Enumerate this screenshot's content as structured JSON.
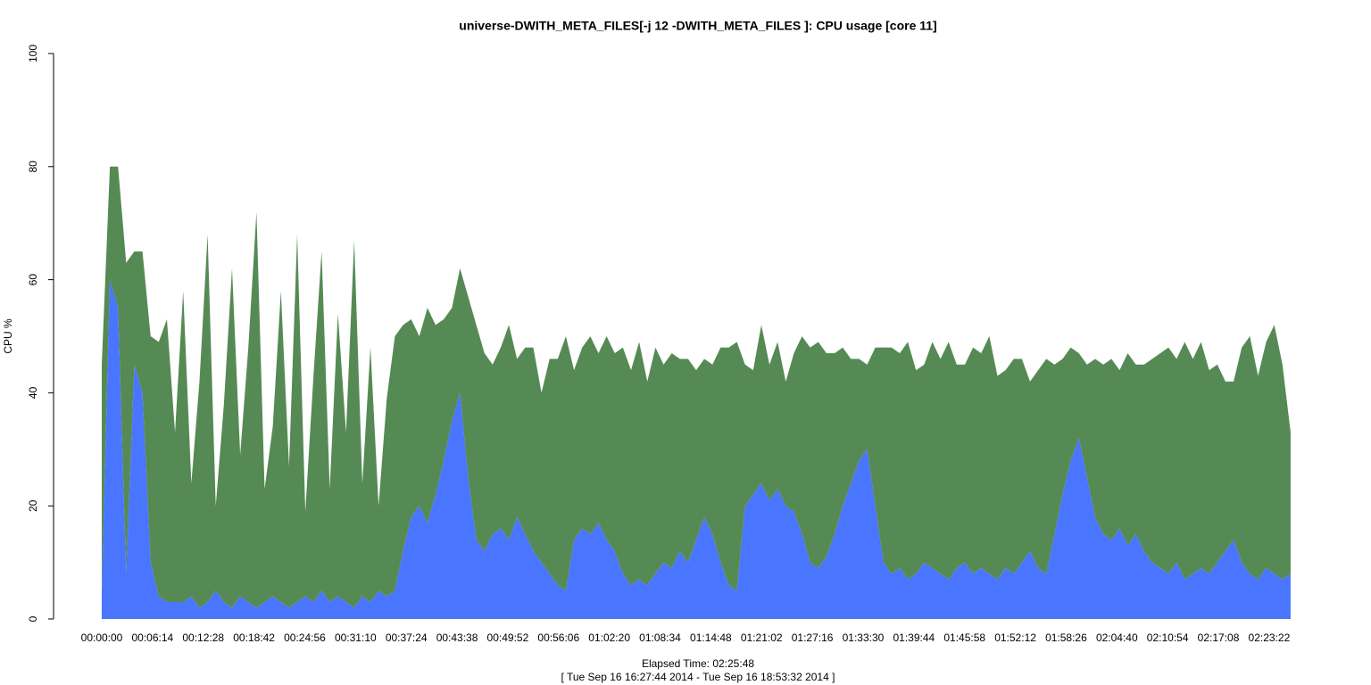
{
  "chart_data": {
    "type": "stacked_area",
    "title": "universe-DWITH_META_FILES[-j 12 -DWITH_META_FILES ]: CPU usage [core 11]",
    "xlabel": "Elapsed Time: 02:25:48",
    "subtitle": "[ Tue Sep 16 16:27:44 2014 - Tue Sep 16 18:53:32 2014 ]",
    "ylabel": "CPU %",
    "xlim": [
      0,
      8800
    ],
    "ylim": [
      0,
      100
    ],
    "yticks": [
      0,
      20,
      40,
      60,
      80,
      100
    ],
    "xticks": [
      {
        "value": 0,
        "label": "00:00:00"
      },
      {
        "value": 374,
        "label": "00:06:14"
      },
      {
        "value": 748,
        "label": "00:12:28"
      },
      {
        "value": 1122,
        "label": "00:18:42"
      },
      {
        "value": 1496,
        "label": "00:24:56"
      },
      {
        "value": 1870,
        "label": "00:31:10"
      },
      {
        "value": 2244,
        "label": "00:37:24"
      },
      {
        "value": 2618,
        "label": "00:43:38"
      },
      {
        "value": 2992,
        "label": "00:49:52"
      },
      {
        "value": 3366,
        "label": "00:56:06"
      },
      {
        "value": 3740,
        "label": "01:02:20"
      },
      {
        "value": 4114,
        "label": "01:08:34"
      },
      {
        "value": 4488,
        "label": "01:14:48"
      },
      {
        "value": 4862,
        "label": "01:21:02"
      },
      {
        "value": 5236,
        "label": "01:27:16"
      },
      {
        "value": 5610,
        "label": "01:33:30"
      },
      {
        "value": 5984,
        "label": "01:39:44"
      },
      {
        "value": 6358,
        "label": "01:45:58"
      },
      {
        "value": 6732,
        "label": "01:52:12"
      },
      {
        "value": 7106,
        "label": "01:58:26"
      },
      {
        "value": 7480,
        "label": "02:04:40"
      },
      {
        "value": 7854,
        "label": "02:10:54"
      },
      {
        "value": 8228,
        "label": "02:17:08"
      },
      {
        "value": 8602,
        "label": "02:23:22"
      }
    ],
    "x": [
      0,
      60,
      120,
      180,
      240,
      300,
      360,
      420,
      480,
      540,
      600,
      660,
      720,
      780,
      840,
      900,
      960,
      1020,
      1080,
      1140,
      1200,
      1260,
      1320,
      1380,
      1440,
      1500,
      1560,
      1620,
      1680,
      1740,
      1800,
      1860,
      1920,
      1980,
      2040,
      2100,
      2160,
      2220,
      2280,
      2340,
      2400,
      2460,
      2520,
      2580,
      2640,
      2700,
      2760,
      2820,
      2880,
      2940,
      3000,
      3060,
      3120,
      3180,
      3240,
      3300,
      3360,
      3420,
      3480,
      3540,
      3600,
      3660,
      3720,
      3780,
      3840,
      3900,
      3960,
      4020,
      4080,
      4140,
      4200,
      4260,
      4320,
      4380,
      4440,
      4500,
      4560,
      4620,
      4680,
      4740,
      4800,
      4860,
      4920,
      4980,
      5040,
      5100,
      5160,
      5220,
      5280,
      5340,
      5400,
      5460,
      5520,
      5580,
      5640,
      5700,
      5760,
      5820,
      5880,
      5940,
      6000,
      6060,
      6120,
      6180,
      6240,
      6300,
      6360,
      6420,
      6480,
      6540,
      6600,
      6660,
      6720,
      6780,
      6840,
      6900,
      6960,
      7020,
      7080,
      7140,
      7200,
      7260,
      7320,
      7380,
      7440,
      7500,
      7560,
      7620,
      7680,
      7740,
      7800,
      7860,
      7920,
      7980,
      8040,
      8100,
      8160,
      8220,
      8280,
      8340,
      8400,
      8460,
      8520,
      8580,
      8640,
      8700,
      8760
    ],
    "series": [
      {
        "color": "#4a75fe",
        "values": [
          5,
          60,
          55,
          8,
          45,
          40,
          10,
          4,
          3,
          3,
          3,
          4,
          2,
          3,
          5,
          3,
          2,
          4,
          3,
          2,
          3,
          4,
          3,
          2,
          3,
          4,
          3,
          5,
          3,
          4,
          3,
          2,
          4,
          3,
          5,
          4,
          5,
          12,
          18,
          20,
          17,
          22,
          28,
          35,
          40,
          25,
          14,
          12,
          15,
          16,
          14,
          18,
          15,
          12,
          10,
          8,
          6,
          5,
          14,
          16,
          15,
          17,
          14,
          12,
          8,
          6,
          7,
          6,
          8,
          10,
          9,
          12,
          10,
          14,
          18,
          15,
          10,
          6,
          5,
          20,
          22,
          24,
          21,
          23,
          20,
          19,
          15,
          10,
          9,
          11,
          15,
          20,
          24,
          28,
          30,
          20,
          10,
          8,
          9,
          7,
          8,
          10,
          9,
          8,
          7,
          9,
          10,
          8,
          9,
          8,
          7,
          9,
          8,
          10,
          12,
          9,
          8,
          15,
          22,
          28,
          32,
          25,
          18,
          15,
          14,
          16,
          13,
          15,
          12,
          10,
          9,
          8,
          10,
          7,
          8,
          9,
          8,
          10,
          12,
          14,
          10,
          8,
          7,
          9,
          8,
          7,
          8
        ]
      },
      {
        "color": "#568a55",
        "values": [
          40,
          20,
          25,
          55,
          20,
          25,
          40,
          45,
          50,
          30,
          55,
          20,
          40,
          65,
          15,
          35,
          60,
          25,
          45,
          70,
          20,
          30,
          55,
          25,
          65,
          15,
          40,
          60,
          20,
          50,
          30,
          65,
          20,
          45,
          15,
          35,
          45,
          40,
          35,
          30,
          38,
          30,
          25,
          20,
          22,
          32,
          38,
          35,
          30,
          32,
          38,
          28,
          33,
          36,
          30,
          38,
          40,
          45,
          30,
          32,
          35,
          30,
          36,
          35,
          40,
          38,
          42,
          36,
          40,
          35,
          38,
          34,
          36,
          30,
          28,
          30,
          38,
          42,
          44,
          25,
          22,
          28,
          24,
          26,
          22,
          28,
          35,
          38,
          40,
          36,
          32,
          28,
          22,
          18,
          15,
          28,
          38,
          40,
          38,
          42,
          36,
          35,
          40,
          38,
          42,
          36,
          35,
          40,
          38,
          42,
          36,
          35,
          38,
          36,
          30,
          35,
          38,
          30,
          24,
          20,
          15,
          20,
          28,
          30,
          32,
          28,
          34,
          30,
          33,
          36,
          38,
          40,
          36,
          42,
          38,
          40,
          36,
          35,
          30,
          28,
          38,
          42,
          36,
          40,
          44,
          38,
          25
        ]
      }
    ]
  }
}
